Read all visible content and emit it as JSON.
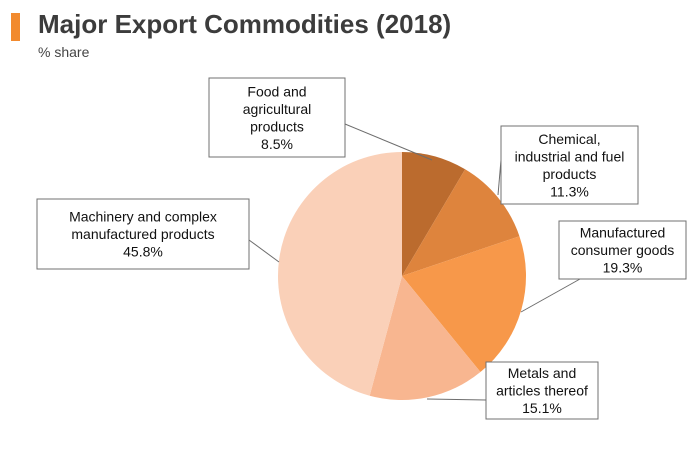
{
  "header": {
    "title": "Major Export Commodities (2018)",
    "subtitle": "% share",
    "accent_color": "#f28a2e"
  },
  "chart_data": {
    "type": "pie",
    "title": "Major Export Commodities (2018)",
    "subtitle": "% share",
    "slices": [
      {
        "name": "Food and agricultural products",
        "label_lines": [
          "Food and",
          "agricultural",
          "products",
          "8.5%"
        ],
        "value": 8.5,
        "color": "#bb6b2e"
      },
      {
        "name": "Chemical, industrial and fuel products",
        "label_lines": [
          "Chemical,",
          "industrial and fuel",
          "products",
          "11.3%"
        ],
        "value": 11.3,
        "color": "#de843d"
      },
      {
        "name": "Manufactured consumer goods",
        "label_lines": [
          "Manufactured",
          "consumer goods",
          "19.3%"
        ],
        "value": 19.3,
        "color": "#f7984a"
      },
      {
        "name": "Metals and articles thereof",
        "label_lines": [
          "Metals and",
          "articles thereof",
          "15.1%"
        ],
        "value": 15.1,
        "color": "#f8b690"
      },
      {
        "name": "Machinery and complex manufactured products",
        "label_lines": [
          "Machinery and complex",
          "manufactured products",
          "45.8%"
        ],
        "value": 45.8,
        "color": "#fad0b8"
      }
    ]
  }
}
